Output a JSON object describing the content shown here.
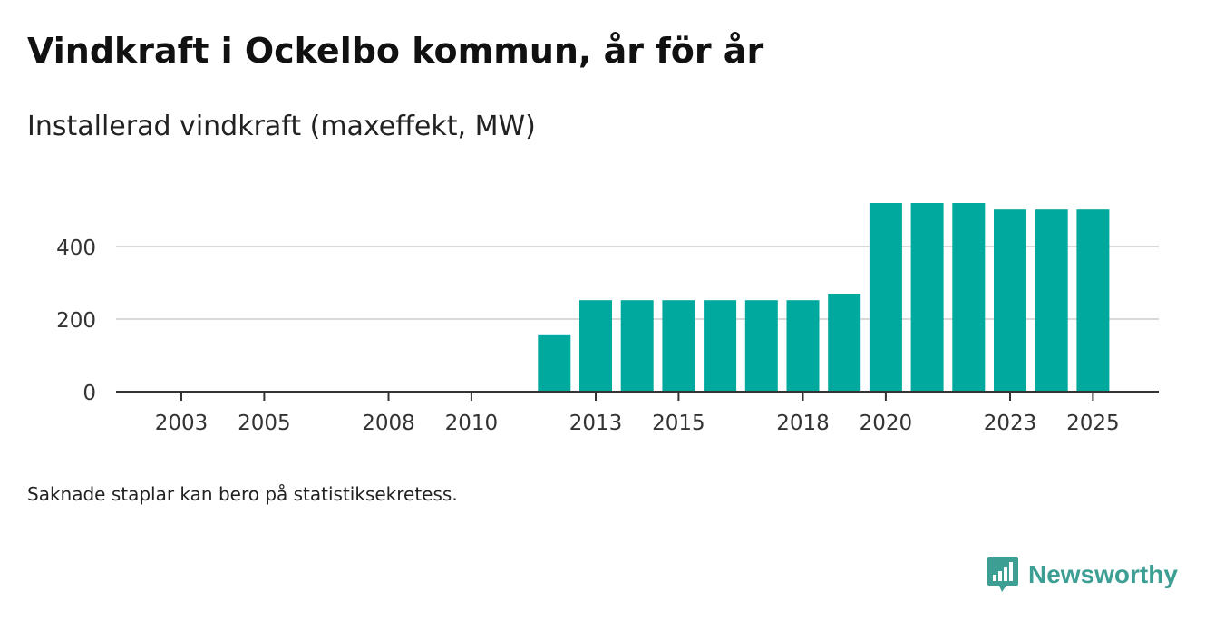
{
  "header": {
    "title": "Vindkraft i Ockelbo kommun, år för år",
    "subtitle": "Installerad vindkraft (maxeffekt, MW)"
  },
  "footer": {
    "note": "Saknade staplar kan bero på statistiksekretess.",
    "brand": "Newsworthy"
  },
  "colors": {
    "bar": "#00a99d",
    "grid": "#d9d9d9",
    "axis": "#333333",
    "brand": "#3d9f94"
  },
  "chart_data": {
    "type": "bar",
    "title": "Vindkraft i Ockelbo kommun, år för år",
    "subtitle": "Installerad vindkraft (maxeffekt, MW)",
    "xlabel": "",
    "ylabel": "",
    "categories": [
      "2003",
      "2004",
      "2005",
      "2006",
      "2007",
      "2008",
      "2009",
      "2010",
      "2011",
      "2012",
      "2013",
      "2014",
      "2015",
      "2016",
      "2017",
      "2018",
      "2019",
      "2020",
      "2021",
      "2022",
      "2023",
      "2024",
      "2025"
    ],
    "values": [
      0,
      0,
      0,
      0,
      0,
      0,
      0,
      0,
      0,
      158,
      252,
      252,
      252,
      252,
      252,
      252,
      270,
      520,
      520,
      520,
      502,
      502,
      502
    ],
    "x_tick_labels": [
      "2003",
      "2005",
      "2008",
      "2010",
      "2013",
      "2015",
      "2018",
      "2020",
      "2023",
      "2025"
    ],
    "y_ticks": [
      0,
      200,
      400
    ],
    "ylim": [
      0,
      520
    ],
    "grid": true
  }
}
